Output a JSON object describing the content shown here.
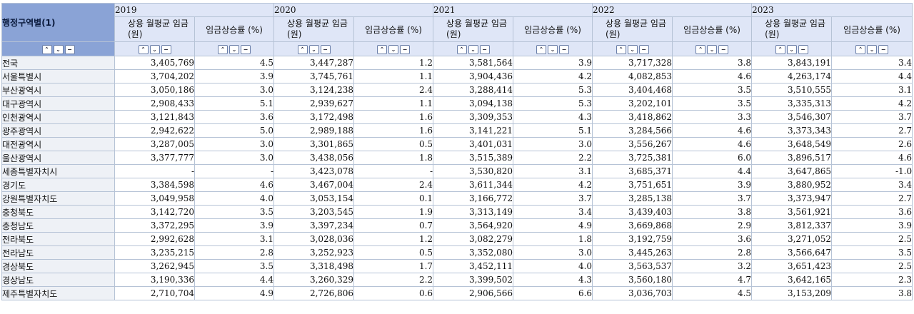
{
  "header": {
    "corner_label": "행정구역별(1)",
    "years": [
      "2019",
      "2020",
      "2021",
      "2022",
      "2023"
    ],
    "wage_label_line1": "상용 월평균 임금",
    "wage_label_line2": "(원)",
    "rate_label": "임금상승률 (%)",
    "controls": {
      "expand": "⌃",
      "collapse": "⌄",
      "remove": "−"
    }
  },
  "rows": [
    {
      "region": "전국",
      "values": [
        "3,405,769",
        "4.5",
        "3,447,287",
        "1.2",
        "3,581,564",
        "3.9",
        "3,717,328",
        "3.8",
        "3,843,191",
        "3.4"
      ]
    },
    {
      "region": "서울특별시",
      "values": [
        "3,704,202",
        "3.9",
        "3,745,761",
        "1.1",
        "3,904,436",
        "4.2",
        "4,082,853",
        "4.6",
        "4,263,174",
        "4.4"
      ]
    },
    {
      "region": "부산광역시",
      "values": [
        "3,050,186",
        "3.0",
        "3,124,238",
        "2.4",
        "3,288,414",
        "5.3",
        "3,404,468",
        "3.5",
        "3,510,555",
        "3.1"
      ]
    },
    {
      "region": "대구광역시",
      "values": [
        "2,908,433",
        "5.1",
        "2,939,627",
        "1.1",
        "3,094,138",
        "5.3",
        "3,202,101",
        "3.5",
        "3,335,313",
        "4.2"
      ]
    },
    {
      "region": "인천광역시",
      "values": [
        "3,121,843",
        "3.6",
        "3,172,498",
        "1.6",
        "3,309,353",
        "4.3",
        "3,418,862",
        "3.3",
        "3,546,307",
        "3.7"
      ]
    },
    {
      "region": "광주광역시",
      "values": [
        "2,942,622",
        "5.0",
        "2,989,188",
        "1.6",
        "3,141,221",
        "5.1",
        "3,284,566",
        "4.6",
        "3,373,343",
        "2.7"
      ]
    },
    {
      "region": "대전광역시",
      "values": [
        "3,287,005",
        "3.0",
        "3,301,865",
        "0.5",
        "3,401,031",
        "3.0",
        "3,556,267",
        "4.6",
        "3,648,549",
        "2.6"
      ]
    },
    {
      "region": "울산광역시",
      "values": [
        "3,377,777",
        "3.0",
        "3,438,056",
        "1.8",
        "3,515,389",
        "2.2",
        "3,725,381",
        "6.0",
        "3,896,517",
        "4.6"
      ]
    },
    {
      "region": "세종특별자치시",
      "values": [
        "-",
        "-",
        "3,423,078",
        "-",
        "3,530,820",
        "3.1",
        "3,685,371",
        "4.4",
        "3,647,865",
        "-1.0"
      ]
    },
    {
      "region": "경기도",
      "values": [
        "3,384,598",
        "4.6",
        "3,467,004",
        "2.4",
        "3,611,344",
        "4.2",
        "3,751,651",
        "3.9",
        "3,880,952",
        "3.4"
      ]
    },
    {
      "region": "강원특별자치도",
      "values": [
        "3,049,958",
        "4.0",
        "3,053,154",
        "0.1",
        "3,166,772",
        "3.7",
        "3,285,138",
        "3.7",
        "3,373,947",
        "2.7"
      ]
    },
    {
      "region": "충청북도",
      "values": [
        "3,142,720",
        "3.5",
        "3,203,545",
        "1.9",
        "3,313,149",
        "3.4",
        "3,439,403",
        "3.8",
        "3,561,921",
        "3.6"
      ]
    },
    {
      "region": "충청남도",
      "values": [
        "3,372,295",
        "3.9",
        "3,397,234",
        "0.7",
        "3,564,920",
        "4.9",
        "3,669,868",
        "2.9",
        "3,812,337",
        "3.9"
      ]
    },
    {
      "region": "전라북도",
      "values": [
        "2,992,628",
        "3.1",
        "3,028,036",
        "1.2",
        "3,082,279",
        "1.8",
        "3,192,759",
        "3.6",
        "3,271,052",
        "2.5"
      ]
    },
    {
      "region": "전라남도",
      "values": [
        "3,235,215",
        "2.8",
        "3,252,923",
        "0.5",
        "3,352,080",
        "3.0",
        "3,445,263",
        "2.8",
        "3,566,647",
        "3.5"
      ]
    },
    {
      "region": "경상북도",
      "values": [
        "3,262,945",
        "3.5",
        "3,318,498",
        "1.7",
        "3,452,111",
        "4.0",
        "3,563,537",
        "3.2",
        "3,651,423",
        "2.5"
      ]
    },
    {
      "region": "경상남도",
      "values": [
        "3,190,336",
        "4.4",
        "3,260,329",
        "2.2",
        "3,399,502",
        "4.3",
        "3,560,180",
        "4.7",
        "3,642,165",
        "2.3"
      ]
    },
    {
      "region": "제주특별자치도",
      "values": [
        "2,710,704",
        "4.9",
        "2,726,806",
        "0.6",
        "2,906,566",
        "6.6",
        "3,036,703",
        "4.5",
        "3,153,209",
        "3.8"
      ]
    }
  ]
}
